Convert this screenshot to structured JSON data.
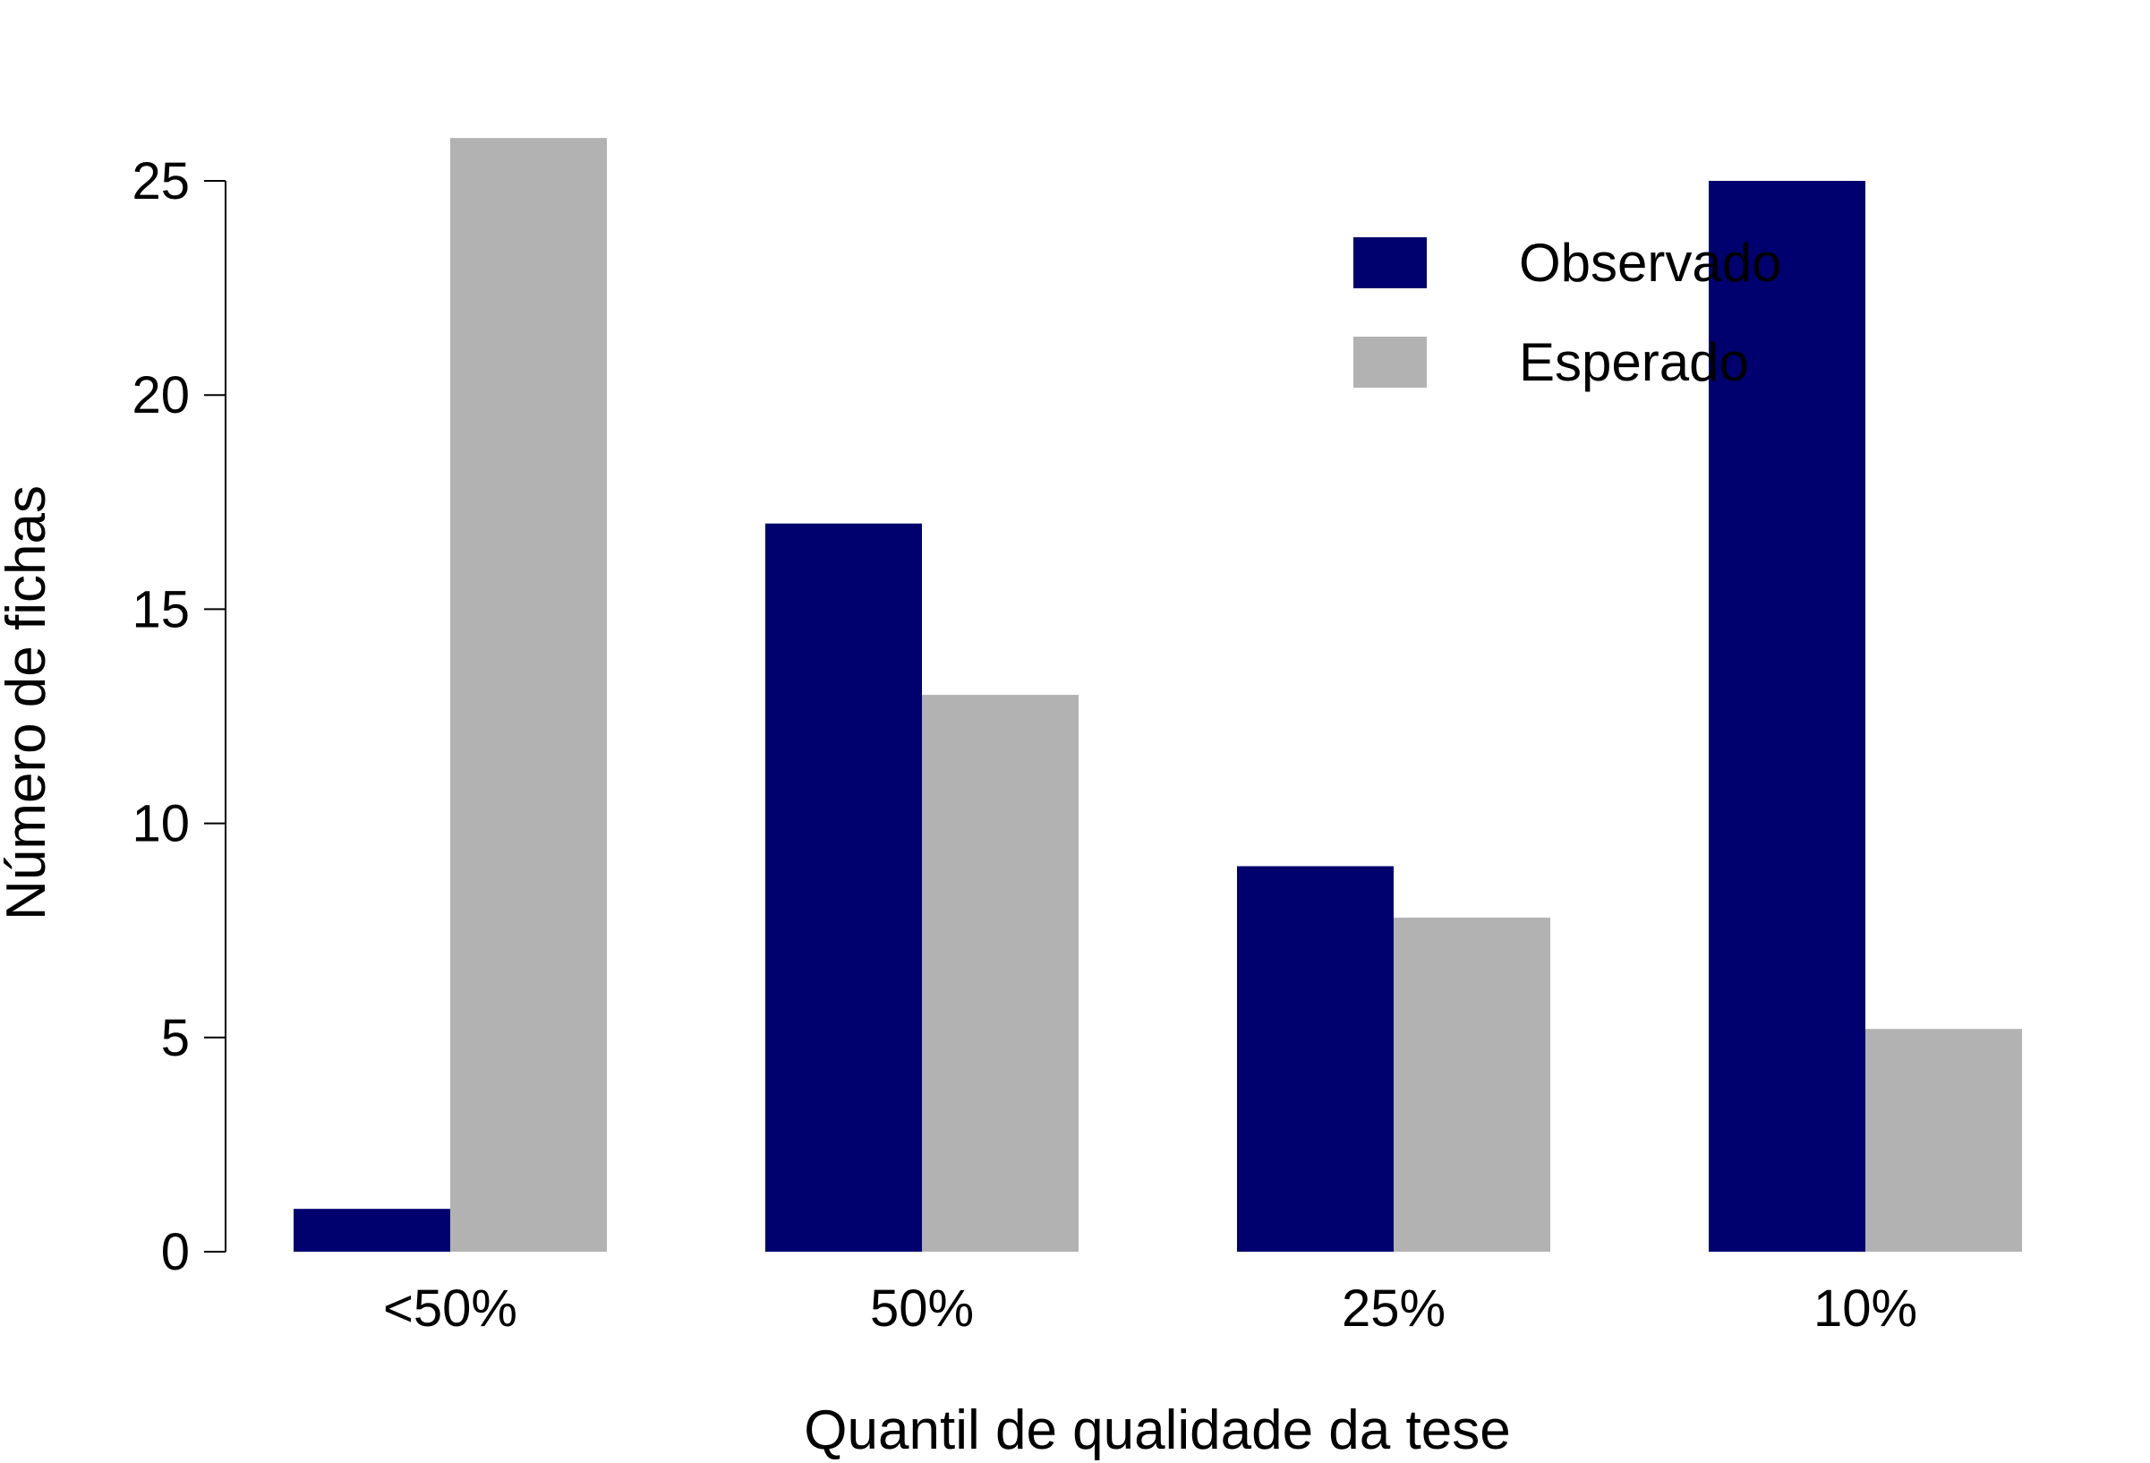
{
  "chart_data": {
    "type": "bar",
    "title": "",
    "xlabel": "Quantil de qualidade da tese",
    "ylabel": "Número de fichas",
    "categories": [
      "<50%",
      "50%",
      "25%",
      "10%"
    ],
    "series": [
      {
        "name": "Observado",
        "color": "#00006e",
        "values": [
          1,
          17,
          9,
          25
        ]
      },
      {
        "name": "Esperado",
        "color": "#b2b2b2",
        "values": [
          26,
          13,
          7.8,
          5.2
        ]
      }
    ],
    "ylim": [
      0,
      25
    ],
    "yticks": [
      0,
      5,
      10,
      15,
      20,
      25
    ],
    "grid": false,
    "legend": "top-right"
  }
}
